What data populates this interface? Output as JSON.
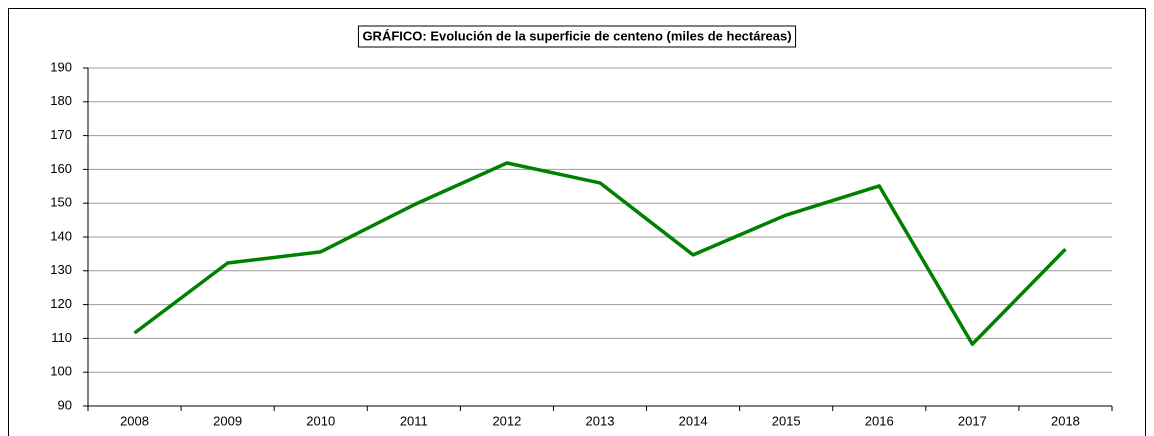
{
  "chart_data": {
    "type": "line",
    "title": "GRÁFICO: Evolución de la superficie de centeno (miles de hectáreas)",
    "categories": [
      "2008",
      "2009",
      "2010",
      "2011",
      "2012",
      "2013",
      "2014",
      "2015",
      "2016",
      "2017",
      "2018"
    ],
    "values": [
      111.6,
      132.3,
      135.6,
      149.5,
      161.9,
      156.0,
      134.7,
      146.5,
      155.1,
      108.3,
      136.4
    ],
    "color": "#008000",
    "ylim": [
      90,
      190
    ],
    "yticks": [
      90,
      100,
      110,
      120,
      130,
      140,
      150,
      160,
      170,
      180,
      190
    ],
    "grid": true
  }
}
